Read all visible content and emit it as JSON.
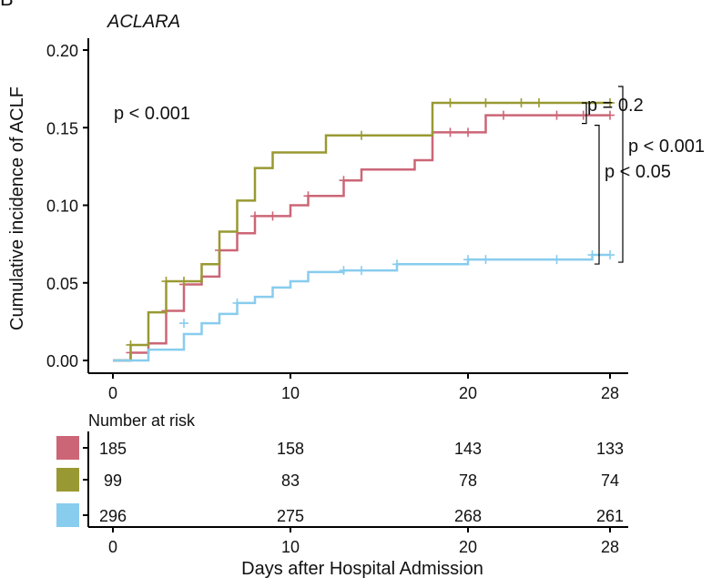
{
  "panel_letter": "B",
  "chart_data": {
    "type": "line",
    "step": true,
    "title": "ACLARA",
    "xlabel": "Days after Hospital Admission",
    "ylabel": "Cumulative incidence of ACLF",
    "xlim": [
      0,
      28
    ],
    "ylim": [
      0,
      0.2
    ],
    "x_ticks": [
      0,
      10,
      20,
      28
    ],
    "y_ticks": [
      "0.00",
      "0.05",
      "0.10",
      "0.15",
      "0.20"
    ],
    "grid": false,
    "colors": {
      "red": "#cc6677",
      "olive": "#999933",
      "blue": "#88ccee"
    },
    "series": [
      {
        "color": "#cc6677",
        "steps": [
          [
            0,
            0
          ],
          [
            1,
            0.005
          ],
          [
            2,
            0.011
          ],
          [
            3,
            0.032
          ],
          [
            4,
            0.049
          ],
          [
            5,
            0.054
          ],
          [
            6,
            0.071
          ],
          [
            7,
            0.082
          ],
          [
            8,
            0.093
          ],
          [
            10,
            0.1
          ],
          [
            11,
            0.106
          ],
          [
            13,
            0.116
          ],
          [
            14,
            0.123
          ],
          [
            17,
            0.129
          ],
          [
            18,
            0.147
          ],
          [
            21,
            0.158
          ],
          [
            28,
            0.158
          ]
        ],
        "censors": [
          [
            1,
            0.005
          ],
          [
            3,
            0.032
          ],
          [
            4,
            0.049
          ],
          [
            6,
            0.071
          ],
          [
            8,
            0.093
          ],
          [
            9,
            0.093
          ],
          [
            11,
            0.106
          ],
          [
            13,
            0.116
          ],
          [
            19,
            0.147
          ],
          [
            20,
            0.147
          ],
          [
            22,
            0.158
          ],
          [
            25,
            0.158
          ],
          [
            26.5,
            0.158
          ],
          [
            28,
            0.158
          ]
        ]
      },
      {
        "color": "#999933",
        "steps": [
          [
            0,
            0
          ],
          [
            1,
            0.01
          ],
          [
            2,
            0.031
          ],
          [
            3,
            0.051
          ],
          [
            5,
            0.062
          ],
          [
            6,
            0.083
          ],
          [
            7,
            0.103
          ],
          [
            8,
            0.124
          ],
          [
            9,
            0.134
          ],
          [
            12,
            0.145
          ],
          [
            18,
            0.166
          ],
          [
            28,
            0.166
          ]
        ],
        "censors": [
          [
            1,
            0.01
          ],
          [
            3,
            0.051
          ],
          [
            4,
            0.051
          ],
          [
            14,
            0.145
          ],
          [
            19,
            0.166
          ],
          [
            21,
            0.166
          ],
          [
            23,
            0.166
          ],
          [
            24,
            0.166
          ],
          [
            28,
            0.166
          ]
        ]
      },
      {
        "color": "#88ccee",
        "steps": [
          [
            0,
            0
          ],
          [
            2,
            0.007
          ],
          [
            4,
            0.017
          ],
          [
            5,
            0.024
          ],
          [
            6,
            0.03
          ],
          [
            7,
            0.037
          ],
          [
            8,
            0.041
          ],
          [
            9,
            0.047
          ],
          [
            10,
            0.051
          ],
          [
            11,
            0.057
          ],
          [
            13,
            0.058
          ],
          [
            16,
            0.062
          ],
          [
            20,
            0.065
          ],
          [
            27,
            0.068
          ],
          [
            28,
            0.068
          ]
        ],
        "censors": [
          [
            4,
            0.024
          ],
          [
            7,
            0.037
          ],
          [
            13,
            0.058
          ],
          [
            14,
            0.058
          ],
          [
            16,
            0.062
          ],
          [
            20,
            0.065
          ],
          [
            21,
            0.065
          ],
          [
            25,
            0.065
          ],
          [
            27,
            0.068
          ],
          [
            28,
            0.068
          ]
        ]
      }
    ],
    "annotations": {
      "overall": "p < 0.001",
      "olive_vs_red": "p = 0.2",
      "blue_vs_olive": "p < 0.001",
      "blue_vs_red": "p < 0.05"
    },
    "risk_table": {
      "title": "Number at risk",
      "time_points": [
        0,
        10,
        20,
        28
      ],
      "rows": [
        {
          "color": "#cc6677",
          "values": [
            "185",
            "158",
            "143",
            "133"
          ]
        },
        {
          "color": "#999933",
          "values": [
            "99",
            "83",
            "78",
            "74"
          ]
        },
        {
          "color": "#88ccee",
          "values": [
            "296",
            "275",
            "268",
            "261"
          ]
        }
      ],
      "x_ticks": [
        0,
        10,
        20,
        28
      ]
    }
  }
}
